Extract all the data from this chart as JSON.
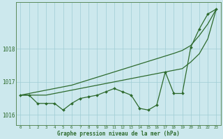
{
  "xlabel": "Graphe pression niveau de la mer (hPa)",
  "background_color": "#cce8ed",
  "grid_color": "#9fccd4",
  "line_color": "#2d6a2d",
  "hours": [
    0,
    1,
    2,
    3,
    4,
    5,
    6,
    7,
    8,
    9,
    10,
    11,
    12,
    13,
    14,
    15,
    16,
    17,
    18,
    19,
    20,
    21,
    22,
    23
  ],
  "series_wiggly": [
    1016.6,
    1016.6,
    1016.35,
    1016.35,
    1016.35,
    1016.15,
    1016.35,
    1016.5,
    1016.55,
    1016.6,
    1016.7,
    1016.8,
    1016.7,
    1016.6,
    1016.2,
    1016.15,
    1016.3,
    1017.3,
    1016.65,
    1016.65,
    1018.05,
    1018.6,
    1019.05,
    1019.2
  ],
  "series_linear_low": [
    1016.6,
    1016.6,
    1016.6,
    1016.6,
    1016.65,
    1016.7,
    1016.75,
    1016.8,
    1016.85,
    1016.9,
    1016.95,
    1017.0,
    1017.05,
    1017.1,
    1017.15,
    1017.2,
    1017.25,
    1017.3,
    1017.35,
    1017.4,
    1017.6,
    1017.85,
    1018.3,
    1019.2
  ],
  "series_linear_high": [
    1016.6,
    1016.65,
    1016.7,
    1016.75,
    1016.8,
    1016.85,
    1016.9,
    1016.98,
    1017.06,
    1017.14,
    1017.22,
    1017.3,
    1017.38,
    1017.46,
    1017.54,
    1017.62,
    1017.7,
    1017.78,
    1017.86,
    1017.95,
    1018.1,
    1018.4,
    1018.75,
    1019.2
  ],
  "ylim_min": 1015.7,
  "ylim_max": 1019.4,
  "yticks": [
    1016,
    1017,
    1018
  ],
  "marker_size": 2.0,
  "linewidth": 0.9
}
